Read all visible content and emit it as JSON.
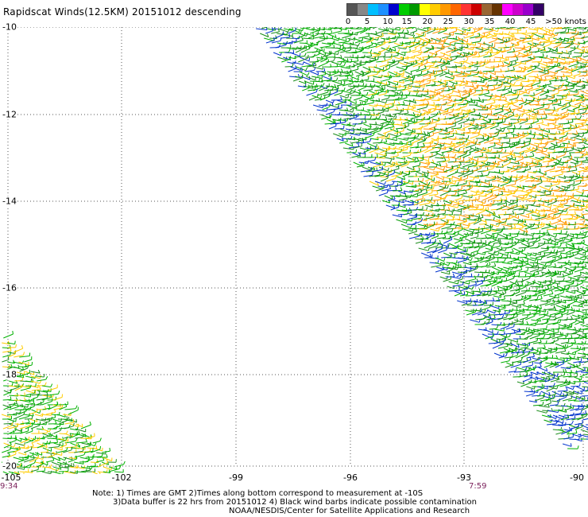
{
  "title": "Rapidscat Winds(12.5KM) 20151012 descending",
  "legend": {
    "colors": [
      "#555555",
      "#888888",
      "#00bfff",
      "#1e90ff",
      "#0000cd",
      "#00cc00",
      "#009900",
      "#ffff00",
      "#ffcc00",
      "#ff9900",
      "#ff6600",
      "#ff3333",
      "#cc0000",
      "#996633",
      "#663300",
      "#ff00ff",
      "#cc00cc",
      "#9900cc",
      "#330066"
    ],
    "labels": [
      "0",
      "5",
      "10",
      "15",
      "20",
      "25",
      "30",
      "35",
      "40",
      "45",
      ">50 knots"
    ]
  },
  "axes": {
    "y_labels": [
      "-10",
      "-12",
      "-14",
      "-16",
      "-18",
      "-20"
    ],
    "x_labels": [
      "-105",
      "-102",
      "-99",
      "-96",
      "-93",
      "-90"
    ]
  },
  "time_labels": {
    "left": "9:34",
    "right": "7:59"
  },
  "notes": {
    "line1": "Note: 1) Times are GMT 2)Times along bottom correspond to measurement at -10S",
    "line2": "3)Data buffer is 22 hrs from 20151012 4) Black wind barbs indicate possible contamination",
    "line3": "NOAA/NESDIS/Center for Satellite Applications and Research"
  }
}
